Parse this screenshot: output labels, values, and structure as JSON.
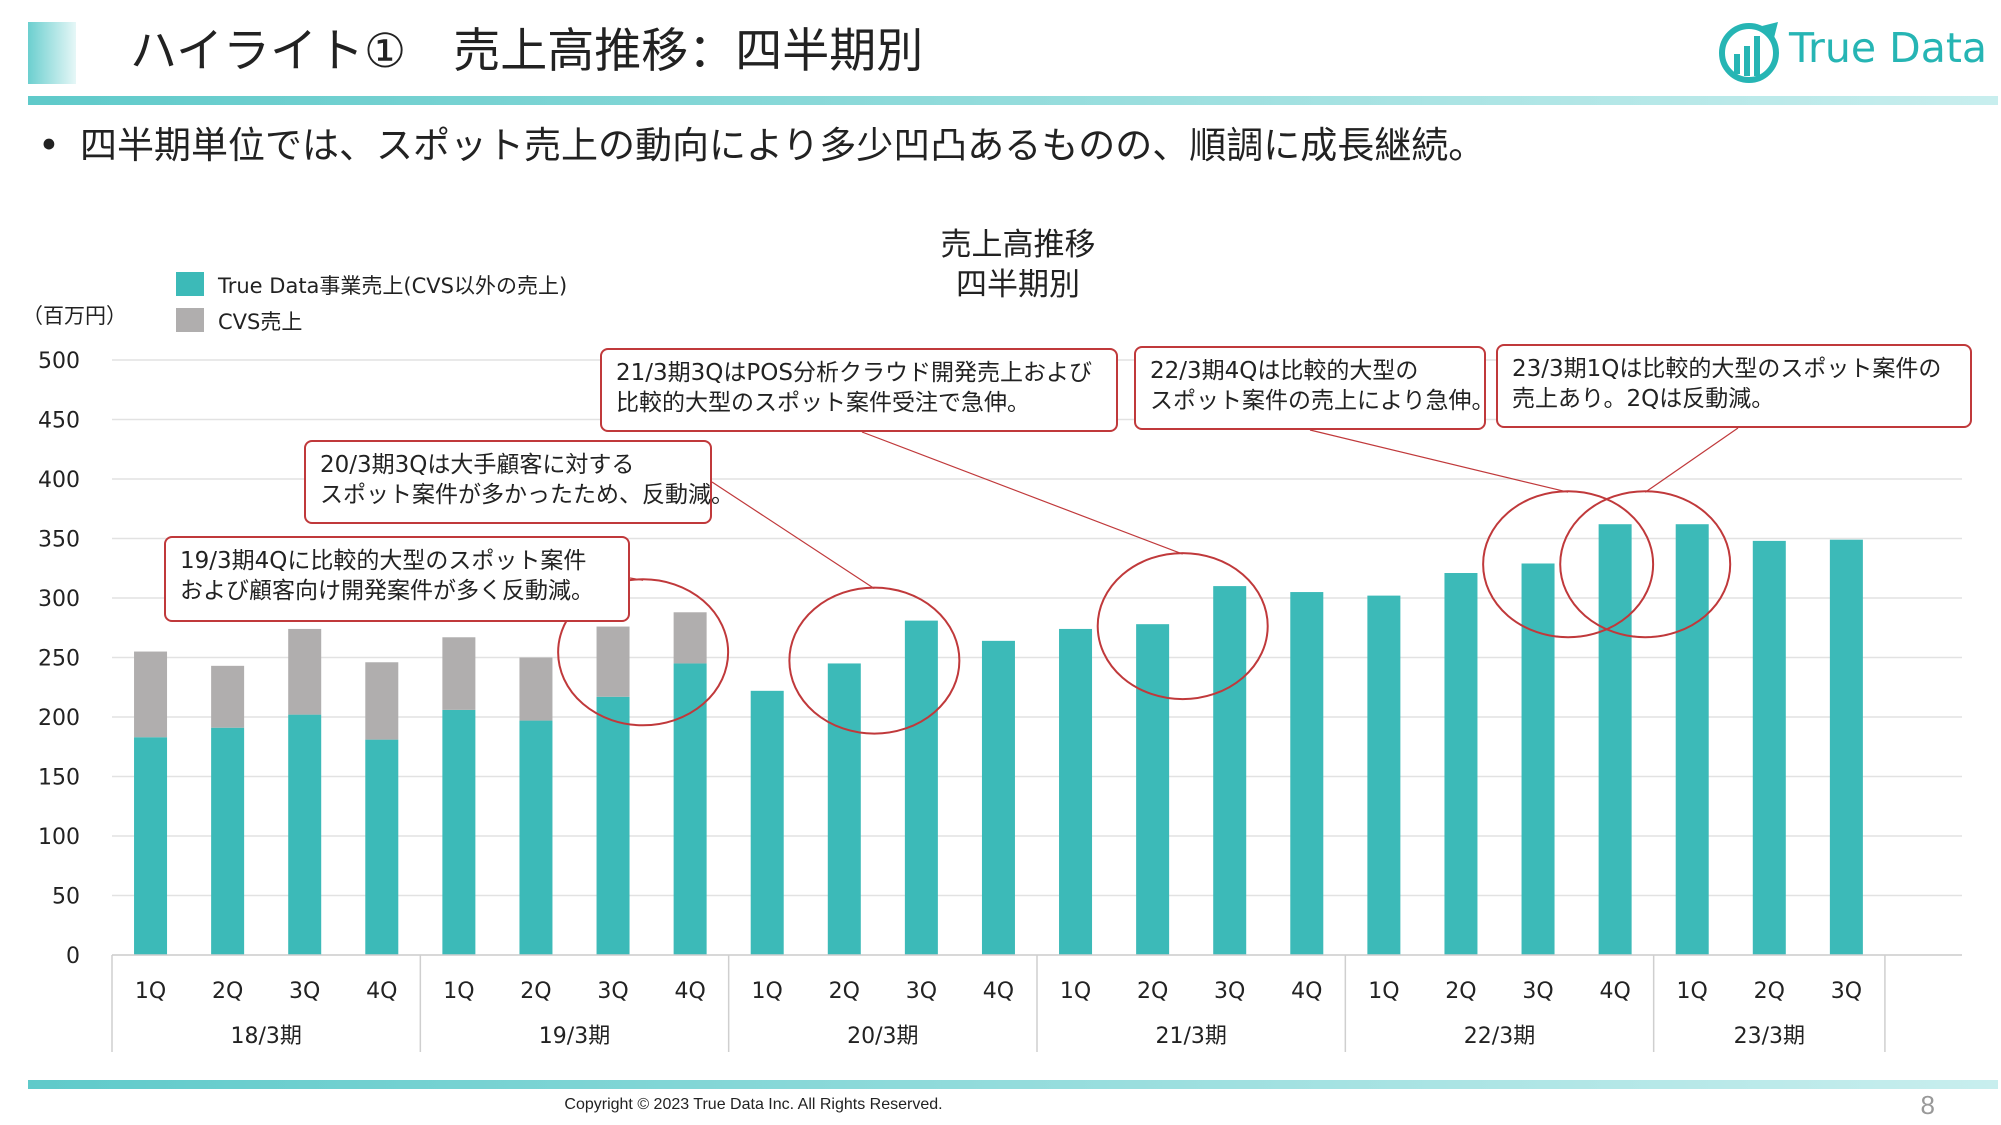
{
  "header": {
    "title": "ハイライト①　売上高推移：四半期別",
    "logo_text": "True Data"
  },
  "bullet": "四半期単位では、スポット売上の動向により多少凹凸あるものの、順調に成長継続。",
  "footer": {
    "copyright": "Copyright © 2023 True Data Inc. All Rights Reserved.",
    "page_number": "8"
  },
  "callouts": [
    {
      "line1": "19/3期4Qに比較的大型のスポット案件",
      "line2": "および顧客向け開発案件が多く反動減。"
    },
    {
      "line1": "20/3期3Qは大手顧客に対する",
      "line2": "スポット案件が多かったため、反動減。"
    },
    {
      "line1": "21/3期3QはPOS分析クラウド開発売上および",
      "line2": "比較的大型のスポット案件受注で急伸。"
    },
    {
      "line1": "22/3期4Qは比較的大型の",
      "line2": "スポット案件の売上により急伸。"
    },
    {
      "line1": "23/3期1Qは比較的大型のスポット案件の",
      "line2": "売上あり。2Qは反動減。"
    }
  ],
  "colors": {
    "accent": "#3cbab8",
    "cvs": "#b0aeae",
    "callout_border": "#c0393b"
  },
  "chart_data": {
    "type": "bar",
    "stacked": true,
    "title": "売上高推移",
    "subtitle": "四半期別",
    "unit_label": "（百万円）",
    "ylim": [
      0,
      500
    ],
    "yticks": [
      0,
      50,
      100,
      150,
      200,
      250,
      300,
      350,
      400,
      450,
      500
    ],
    "grid": true,
    "legend_position": "top-left",
    "categories": [
      "1Q",
      "2Q",
      "3Q",
      "4Q",
      "1Q",
      "2Q",
      "3Q",
      "4Q",
      "1Q",
      "2Q",
      "3Q",
      "4Q",
      "1Q",
      "2Q",
      "3Q",
      "4Q",
      "1Q",
      "2Q",
      "3Q",
      "4Q",
      "1Q",
      "2Q",
      "3Q"
    ],
    "groups": [
      {
        "label": "18/3期",
        "count": 4
      },
      {
        "label": "19/3期",
        "count": 4
      },
      {
        "label": "20/3期",
        "count": 4
      },
      {
        "label": "21/3期",
        "count": 4
      },
      {
        "label": "22/3期",
        "count": 4
      },
      {
        "label": "23/3期",
        "count": 3
      }
    ],
    "series": [
      {
        "name": "True Data事業売上(CVS以外の売上)",
        "color": "#3cbab8",
        "values": [
          183,
          191,
          202,
          181,
          206,
          197,
          217,
          245,
          222,
          245,
          281,
          264,
          274,
          278,
          310,
          305,
          302,
          321,
          329,
          362,
          362,
          348,
          349
        ]
      },
      {
        "name": "CVS売上",
        "color": "#b0aeae",
        "values": [
          72,
          52,
          72,
          65,
          61,
          53,
          59,
          43,
          0,
          0,
          0,
          0,
          0,
          0,
          0,
          0,
          0,
          0,
          0,
          0,
          0,
          0,
          0
        ]
      }
    ],
    "highlight_circles": [
      {
        "group": 1,
        "quarter": 4
      },
      {
        "group": 2,
        "quarter": 3
      },
      {
        "group": 3,
        "quarter": 3
      },
      {
        "group": 4,
        "quarter": 4
      },
      {
        "group": 5,
        "quarter": 1
      }
    ]
  }
}
